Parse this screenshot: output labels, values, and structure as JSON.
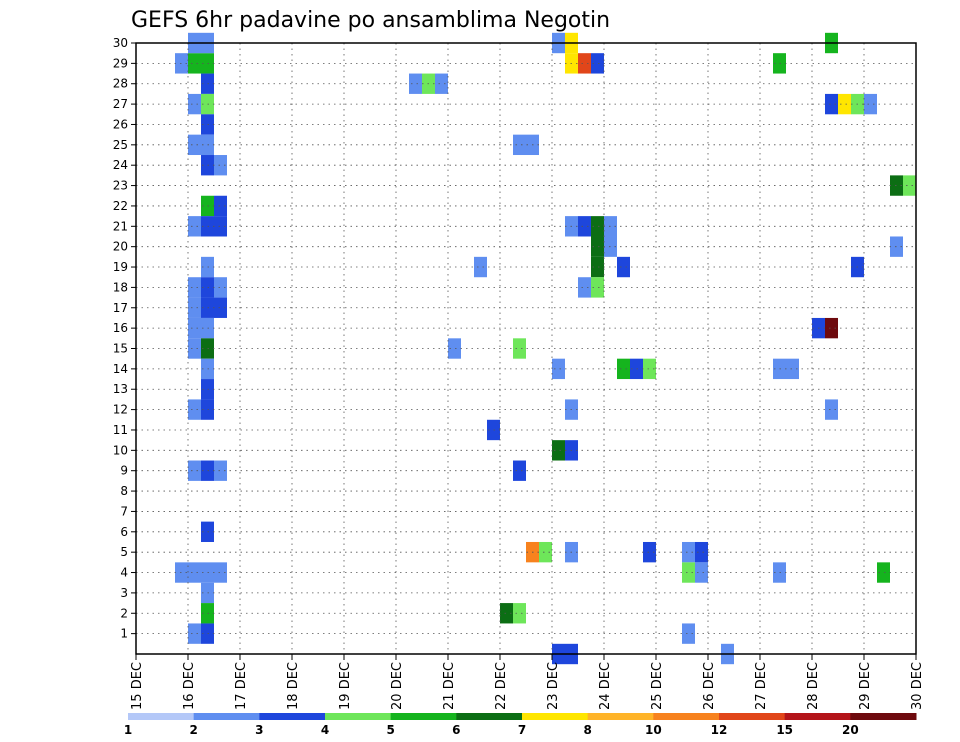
{
  "chart_data": {
    "type": "heatmap",
    "title": "GEFS 6hr padavine po ansamblima Negotin",
    "xlabel": "",
    "ylabel": "",
    "x_tick_labels": [
      "15 DEC",
      "16 DEC",
      "17 DEC",
      "18 DEC",
      "19 DEC",
      "20 DEC",
      "21 DEC",
      "22 DEC",
      "23 DEC",
      "24 DEC",
      "25 DEC",
      "26 DEC",
      "27 DEC",
      "28 DEC",
      "29 DEC",
      "30 DEC"
    ],
    "x_range_days": [
      15,
      30
    ],
    "y_tick_labels": [
      "1",
      "2",
      "3",
      "4",
      "5",
      "6",
      "7",
      "8",
      "9",
      "10",
      "11",
      "12",
      "13",
      "14",
      "15",
      "16",
      "17",
      "18",
      "19",
      "20",
      "21",
      "22",
      "23",
      "24",
      "25",
      "26",
      "27",
      "28",
      "29",
      "30"
    ],
    "y_range": [
      0,
      30
    ],
    "step_hours": 6,
    "grid": true,
    "colorbar": {
      "labels": [
        "1",
        "2",
        "3",
        "4",
        "5",
        "6",
        "7",
        "8",
        "10",
        "12",
        "15",
        "20"
      ],
      "colors": [
        "#b4c8f8",
        "#5f8ef0",
        "#1e46dc",
        "#6ee65a",
        "#15b41e",
        "#0c6e14",
        "#ffe600",
        "#ffb428",
        "#f7821e",
        "#e1461a",
        "#b4141a",
        "#6e0a0e"
      ]
    },
    "cells": [
      {
        "d": 15.75,
        "m": 29,
        "c": 1
      },
      {
        "d": 16.0,
        "m": 29,
        "c": 4
      },
      {
        "d": 16.25,
        "m": 29,
        "c": 4
      },
      {
        "d": 16.0,
        "m": 30,
        "c": 1
      },
      {
        "d": 16.25,
        "m": 30,
        "c": 1
      },
      {
        "d": 16.25,
        "m": 28,
        "c": 2
      },
      {
        "d": 16.0,
        "m": 27,
        "c": 1
      },
      {
        "d": 16.25,
        "m": 27,
        "c": 3
      },
      {
        "d": 16.25,
        "m": 26,
        "c": 2
      },
      {
        "d": 16.0,
        "m": 25,
        "c": 1
      },
      {
        "d": 16.25,
        "m": 25,
        "c": 1
      },
      {
        "d": 16.25,
        "m": 24,
        "c": 2
      },
      {
        "d": 16.5,
        "m": 24,
        "c": 1
      },
      {
        "d": 16.25,
        "m": 22,
        "c": 4
      },
      {
        "d": 16.5,
        "m": 22,
        "c": 2
      },
      {
        "d": 16.0,
        "m": 21,
        "c": 1
      },
      {
        "d": 16.25,
        "m": 21,
        "c": 2
      },
      {
        "d": 16.5,
        "m": 21,
        "c": 2
      },
      {
        "d": 16.25,
        "m": 19,
        "c": 1
      },
      {
        "d": 16.0,
        "m": 18,
        "c": 1
      },
      {
        "d": 16.25,
        "m": 18,
        "c": 2
      },
      {
        "d": 16.5,
        "m": 18,
        "c": 1
      },
      {
        "d": 16.0,
        "m": 17,
        "c": 1
      },
      {
        "d": 16.25,
        "m": 17,
        "c": 2
      },
      {
        "d": 16.5,
        "m": 17,
        "c": 2
      },
      {
        "d": 16.0,
        "m": 16,
        "c": 1
      },
      {
        "d": 16.25,
        "m": 16,
        "c": 1
      },
      {
        "d": 16.0,
        "m": 15,
        "c": 1
      },
      {
        "d": 16.25,
        "m": 15,
        "c": 5
      },
      {
        "d": 16.25,
        "m": 14,
        "c": 1
      },
      {
        "d": 16.25,
        "m": 13,
        "c": 2
      },
      {
        "d": 16.0,
        "m": 12,
        "c": 1
      },
      {
        "d": 16.25,
        "m": 12,
        "c": 2
      },
      {
        "d": 16.0,
        "m": 9,
        "c": 1
      },
      {
        "d": 16.25,
        "m": 9,
        "c": 2
      },
      {
        "d": 16.5,
        "m": 9,
        "c": 1
      },
      {
        "d": 16.25,
        "m": 6,
        "c": 2
      },
      {
        "d": 15.75,
        "m": 4,
        "c": 1
      },
      {
        "d": 16.0,
        "m": 4,
        "c": 1
      },
      {
        "d": 16.25,
        "m": 4,
        "c": 1
      },
      {
        "d": 16.5,
        "m": 4,
        "c": 1
      },
      {
        "d": 16.25,
        "m": 3,
        "c": 1
      },
      {
        "d": 16.25,
        "m": 2,
        "c": 4
      },
      {
        "d": 16.0,
        "m": 1,
        "c": 1
      },
      {
        "d": 16.25,
        "m": 1,
        "c": 2
      },
      {
        "d": 20.25,
        "m": 28,
        "c": 1
      },
      {
        "d": 20.5,
        "m": 28,
        "c": 3
      },
      {
        "d": 20.75,
        "m": 28,
        "c": 1
      },
      {
        "d": 21.0,
        "m": 15,
        "c": 1
      },
      {
        "d": 21.5,
        "m": 19,
        "c": 1
      },
      {
        "d": 21.75,
        "m": 11,
        "c": 2
      },
      {
        "d": 22.0,
        "m": 2,
        "c": 5
      },
      {
        "d": 22.25,
        "m": 2,
        "c": 3
      },
      {
        "d": 22.25,
        "m": 9,
        "c": 2
      },
      {
        "d": 22.25,
        "m": 15,
        "c": 3
      },
      {
        "d": 22.25,
        "m": 25,
        "c": 1
      },
      {
        "d": 22.5,
        "m": 25,
        "c": 1
      },
      {
        "d": 22.5,
        "m": 5,
        "c": 8
      },
      {
        "d": 22.75,
        "m": 5,
        "c": 3
      },
      {
        "d": 23.0,
        "m": 10,
        "c": 5
      },
      {
        "d": 23.25,
        "m": 10,
        "c": 2
      },
      {
        "d": 23.0,
        "m": 14,
        "c": 1
      },
      {
        "d": 23.0,
        "m": 30,
        "c": 1
      },
      {
        "d": 23.25,
        "m": 30,
        "c": 6
      },
      {
        "d": 23.25,
        "m": 29,
        "c": 6
      },
      {
        "d": 23.5,
        "m": 29,
        "c": 9
      },
      {
        "d": 23.75,
        "m": 29,
        "c": 2
      },
      {
        "d": 23.25,
        "m": 21,
        "c": 1
      },
      {
        "d": 23.5,
        "m": 21,
        "c": 2
      },
      {
        "d": 23.75,
        "m": 21,
        "c": 5
      },
      {
        "d": 24.0,
        "m": 21,
        "c": 1
      },
      {
        "d": 23.75,
        "m": 20,
        "c": 5
      },
      {
        "d": 24.0,
        "m": 20,
        "c": 1
      },
      {
        "d": 23.75,
        "m": 19,
        "c": 5
      },
      {
        "d": 23.5,
        "m": 18,
        "c": 1
      },
      {
        "d": 23.75,
        "m": 18,
        "c": 3
      },
      {
        "d": 23.25,
        "m": 12,
        "c": 1
      },
      {
        "d": 23.25,
        "m": 5,
        "c": 1
      },
      {
        "d": 23.0,
        "m": 0,
        "c": 2
      },
      {
        "d": 23.25,
        "m": 0,
        "c": 2
      },
      {
        "d": 24.25,
        "m": 19,
        "c": 2
      },
      {
        "d": 24.25,
        "m": 14,
        "c": 4
      },
      {
        "d": 24.5,
        "m": 14,
        "c": 2
      },
      {
        "d": 24.75,
        "m": 14,
        "c": 3
      },
      {
        "d": 24.75,
        "m": 5,
        "c": 2
      },
      {
        "d": 25.5,
        "m": 5,
        "c": 1
      },
      {
        "d": 25.75,
        "m": 5,
        "c": 2
      },
      {
        "d": 25.5,
        "m": 4,
        "c": 3
      },
      {
        "d": 25.75,
        "m": 4,
        "c": 1
      },
      {
        "d": 25.5,
        "m": 1,
        "c": 1
      },
      {
        "d": 26.25,
        "m": 0,
        "c": 1
      },
      {
        "d": 27.25,
        "m": 29,
        "c": 4
      },
      {
        "d": 27.25,
        "m": 14,
        "c": 1
      },
      {
        "d": 27.5,
        "m": 14,
        "c": 1
      },
      {
        "d": 27.25,
        "m": 4,
        "c": 1
      },
      {
        "d": 28.0,
        "m": 16,
        "c": 2
      },
      {
        "d": 28.25,
        "m": 16,
        "c": 11
      },
      {
        "d": 28.25,
        "m": 30,
        "c": 4
      },
      {
        "d": 28.25,
        "m": 27,
        "c": 2
      },
      {
        "d": 28.5,
        "m": 27,
        "c": 6
      },
      {
        "d": 28.75,
        "m": 27,
        "c": 3
      },
      {
        "d": 29.0,
        "m": 27,
        "c": 1
      },
      {
        "d": 28.25,
        "m": 12,
        "c": 1
      },
      {
        "d": 28.75,
        "m": 19,
        "c": 2
      },
      {
        "d": 29.25,
        "m": 4,
        "c": 4
      },
      {
        "d": 29.5,
        "m": 20,
        "c": 1
      },
      {
        "d": 29.5,
        "m": 23,
        "c": 5
      },
      {
        "d": 29.75,
        "m": 23,
        "c": 3
      }
    ]
  }
}
